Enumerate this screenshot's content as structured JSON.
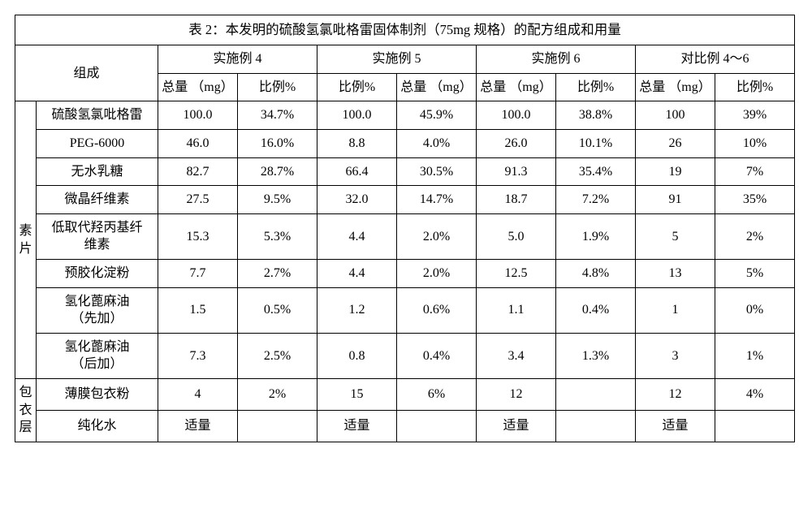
{
  "title": "表 2：本发明的硫酸氢氯吡格雷固体制剂（75mg 规格）的配方组成和用量",
  "header": {
    "composition": "组成",
    "groups": [
      "实施例 4",
      "实施例 5",
      "实施例 6",
      "对比例 4～6"
    ],
    "sub_total": "总量\n（mg）",
    "sub_ratio": "比例%",
    "g1": [
      "总量\n（mg）",
      "比例%"
    ],
    "g2": [
      "比例%",
      "总量\n（mg）"
    ],
    "g3": [
      "总量\n（mg）",
      "比例%"
    ],
    "g4": [
      "总量\n（mg）",
      "比例%"
    ]
  },
  "sections": {
    "suPian": "素\n片",
    "baoYiCeng": "包\n衣\n层"
  },
  "rows": [
    {
      "sec": "suPian",
      "name": "硫酸氢氯吡格雷",
      "g1": [
        "100.0",
        "34.7%"
      ],
      "g2": [
        "100.0",
        "45.9%"
      ],
      "g3": [
        "100.0",
        "38.8%"
      ],
      "g4": [
        "100",
        "39%"
      ]
    },
    {
      "sec": "suPian",
      "name": "PEG-6000",
      "g1": [
        "46.0",
        "16.0%"
      ],
      "g2": [
        "8.8",
        "4.0%"
      ],
      "g3": [
        "26.0",
        "10.1%"
      ],
      "g4": [
        "26",
        "10%"
      ]
    },
    {
      "sec": "suPian",
      "name": "无水乳糖",
      "g1": [
        "82.7",
        "28.7%"
      ],
      "g2": [
        "66.4",
        "30.5%"
      ],
      "g3": [
        "91.3",
        "35.4%"
      ],
      "g4": [
        "19",
        "7%"
      ]
    },
    {
      "sec": "suPian",
      "name": "微晶纤维素",
      "g1": [
        "27.5",
        "9.5%"
      ],
      "g2": [
        "32.0",
        "14.7%"
      ],
      "g3": [
        "18.7",
        "7.2%"
      ],
      "g4": [
        "91",
        "35%"
      ]
    },
    {
      "sec": "suPian",
      "name": "低取代羟丙基纤\n维素",
      "g1": [
        "15.3",
        "5.3%"
      ],
      "g2": [
        "4.4",
        "2.0%"
      ],
      "g3": [
        "5.0",
        "1.9%"
      ],
      "g4": [
        "5",
        "2%"
      ]
    },
    {
      "sec": "suPian",
      "name": "预胶化淀粉",
      "g1": [
        "7.7",
        "2.7%"
      ],
      "g2": [
        "4.4",
        "2.0%"
      ],
      "g3": [
        "12.5",
        "4.8%"
      ],
      "g4": [
        "13",
        "5%"
      ]
    },
    {
      "sec": "suPian",
      "name": "氢化蓖麻油\n（先加）",
      "g1": [
        "1.5",
        "0.5%"
      ],
      "g2": [
        "1.2",
        "0.6%"
      ],
      "g3": [
        "1.1",
        "0.4%"
      ],
      "g4": [
        "1",
        "0%"
      ]
    },
    {
      "sec": "suPian",
      "name": "氢化蓖麻油\n（后加）",
      "g1": [
        "7.3",
        "2.5%"
      ],
      "g2": [
        "0.8",
        "0.4%"
      ],
      "g3": [
        "3.4",
        "1.3%"
      ],
      "g4": [
        "3",
        "1%"
      ]
    },
    {
      "sec": "baoYiCeng",
      "name": "薄膜包衣粉",
      "g1": [
        "4",
        "2%"
      ],
      "g2": [
        "15",
        "6%"
      ],
      "g3": [
        "12",
        ""
      ],
      "g4": [
        "12",
        "4%"
      ]
    },
    {
      "sec": "baoYiCeng",
      "name": "纯化水",
      "g1": [
        "适量",
        ""
      ],
      "g2": [
        "适量",
        ""
      ],
      "g3": [
        "适量",
        ""
      ],
      "g4": [
        "适量",
        ""
      ]
    }
  ]
}
